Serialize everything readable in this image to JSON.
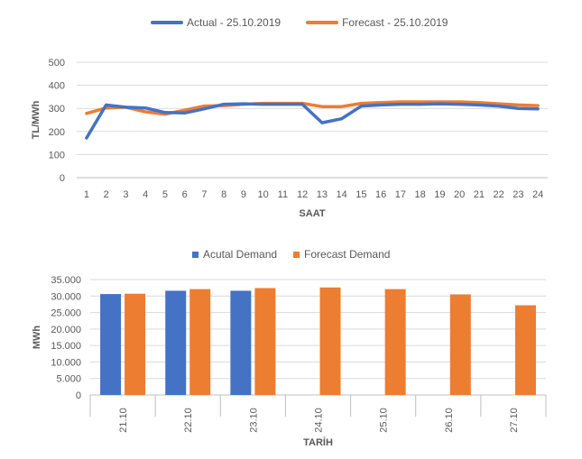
{
  "colors": {
    "actual": "#4472C4",
    "forecast": "#ED7D31",
    "grid": "#D9D9D9",
    "text": "#595959"
  },
  "chart_data": [
    {
      "type": "line",
      "title": "",
      "xlabel": "SAAT",
      "ylabel": "TL/MWh",
      "ylim": [
        0,
        500
      ],
      "yticks": [
        "0",
        "100",
        "200",
        "300",
        "400",
        "500"
      ],
      "categories": [
        "1",
        "2",
        "3",
        "4",
        "5",
        "6",
        "7",
        "8",
        "9",
        "10",
        "11",
        "12",
        "13",
        "14",
        "15",
        "16",
        "17",
        "18",
        "19",
        "20",
        "21",
        "22",
        "23",
        "24"
      ],
      "series": [
        {
          "name": "Actual - 25.10.2019",
          "values": [
            172,
            315,
            305,
            302,
            282,
            280,
            298,
            318,
            320,
            318,
            318,
            318,
            238,
            255,
            310,
            315,
            318,
            318,
            320,
            318,
            315,
            310,
            300,
            298
          ]
        },
        {
          "name": "Forecast - 25.10.2019",
          "values": [
            278,
            302,
            305,
            285,
            275,
            292,
            310,
            312,
            318,
            322,
            322,
            322,
            308,
            308,
            322,
            325,
            328,
            328,
            328,
            328,
            325,
            320,
            315,
            312
          ]
        }
      ]
    },
    {
      "type": "bar",
      "title": "",
      "xlabel": "TARİH",
      "ylabel": "MWh",
      "ylim": [
        0,
        35000
      ],
      "yticks": [
        "0",
        "5.000",
        "10.000",
        "15.000",
        "20.000",
        "25.000",
        "30.000",
        "35.000"
      ],
      "categories": [
        "21.10",
        "22.10",
        "23.10",
        "24.10",
        "25.10",
        "26.10",
        "27.10"
      ],
      "series": [
        {
          "name": "Acutal Demand",
          "values": [
            30600,
            31600,
            31600,
            null,
            null,
            null,
            null
          ]
        },
        {
          "name": "Forecast Demand",
          "values": [
            30700,
            32100,
            32400,
            32600,
            32100,
            30500,
            27200
          ]
        }
      ]
    }
  ]
}
